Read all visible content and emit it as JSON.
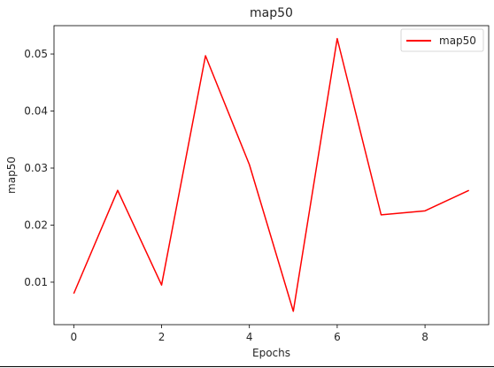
{
  "chart_data": {
    "type": "line",
    "title": "map50",
    "xlabel": "Epochs",
    "ylabel": "map50",
    "xlim": [
      -0.45,
      9.45
    ],
    "ylim": [
      0.00255,
      0.05497
    ],
    "x_ticks": [
      0,
      2,
      4,
      6,
      8
    ],
    "x_tick_labels": [
      "0",
      "2",
      "4",
      "6",
      "8"
    ],
    "y_ticks": [
      0.01,
      0.02,
      0.03,
      0.04,
      0.05
    ],
    "y_tick_labels": [
      "0.01",
      "0.02",
      "0.03",
      "0.04",
      "0.05"
    ],
    "grid": false,
    "legend_position": "top-right",
    "series": [
      {
        "name": "map50",
        "color": "#ff0000",
        "x": [
          0,
          1,
          2,
          3,
          4,
          5,
          6,
          7,
          8,
          9
        ],
        "y": [
          0.008,
          0.0261,
          0.0095,
          0.0497,
          0.0306,
          0.0049,
          0.0527,
          0.0218,
          0.0225,
          0.0261
        ]
      }
    ]
  },
  "colors": {
    "axes": "#000000",
    "text": "#262626",
    "background": "#ffffff"
  }
}
